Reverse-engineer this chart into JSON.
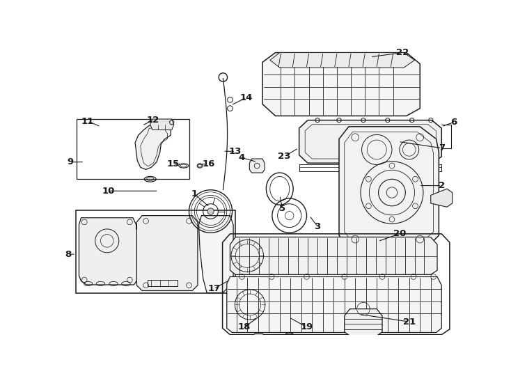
{
  "bg_color": "#ffffff",
  "line_color": "#1a1a1a",
  "fig_width": 7.34,
  "fig_height": 5.4,
  "dpi": 100,
  "label_fontsize": 9.5,
  "parts_labels": [
    [
      1,
      270,
      302,
      242,
      278
    ],
    [
      2,
      658,
      262,
      700,
      262
    ],
    [
      3,
      455,
      318,
      470,
      338
    ],
    [
      4,
      358,
      218,
      330,
      210
    ],
    [
      5,
      400,
      280,
      405,
      305
    ],
    [
      6,
      700,
      152,
      722,
      144
    ],
    [
      7,
      620,
      180,
      700,
      192
    ],
    [
      8,
      22,
      390,
      8,
      390
    ],
    [
      9,
      38,
      218,
      12,
      218
    ],
    [
      10,
      175,
      272,
      82,
      272
    ],
    [
      11,
      68,
      152,
      44,
      142
    ],
    [
      12,
      145,
      150,
      165,
      140
    ],
    [
      13,
      295,
      198,
      318,
      198
    ],
    [
      14,
      310,
      112,
      338,
      98
    ],
    [
      15,
      218,
      222,
      202,
      222
    ],
    [
      16,
      248,
      222,
      268,
      222
    ],
    [
      17,
      308,
      438,
      278,
      454
    ],
    [
      18,
      360,
      508,
      334,
      526
    ],
    [
      19,
      418,
      508,
      450,
      526
    ],
    [
      20,
      582,
      366,
      622,
      352
    ],
    [
      21,
      548,
      502,
      640,
      516
    ],
    [
      22,
      568,
      22,
      628,
      14
    ],
    [
      23,
      435,
      192,
      408,
      208
    ]
  ]
}
